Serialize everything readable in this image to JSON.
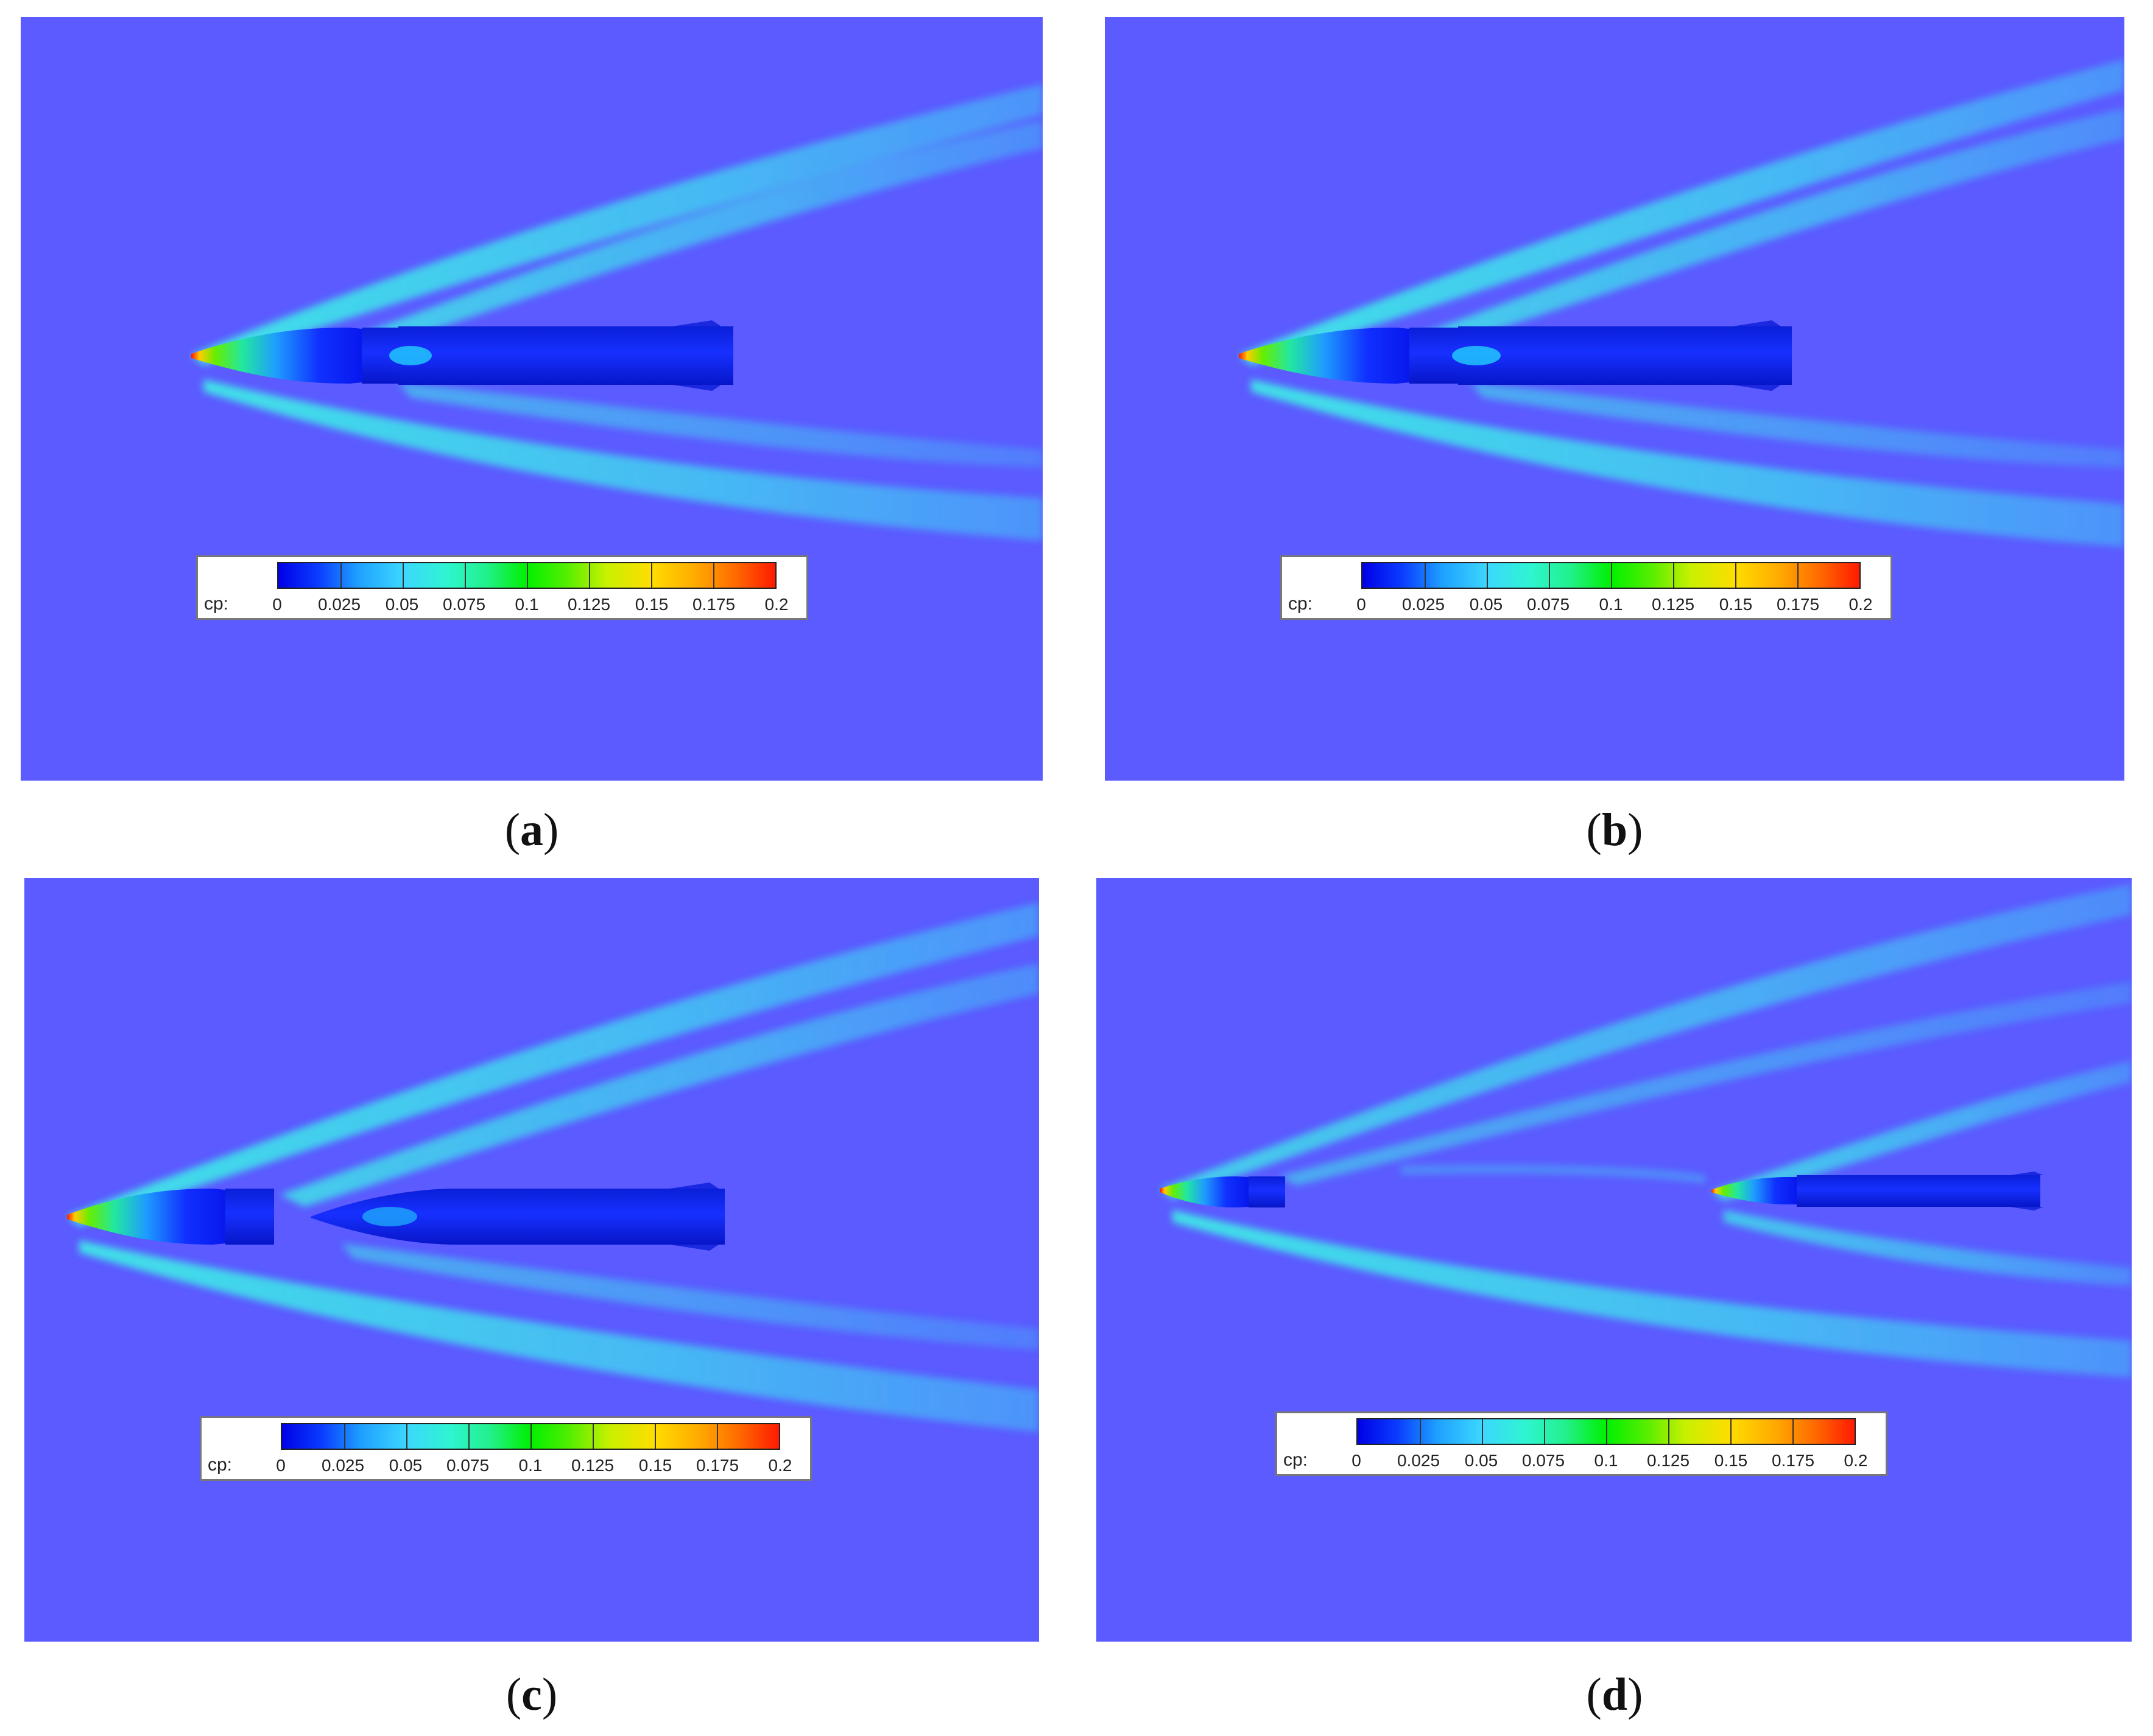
{
  "background_color": "#5b5bff",
  "colormap": [
    "#0000e6",
    "#1ea0ff",
    "#2ef5d0",
    "#00f000",
    "#c8f000",
    "#ffdd00",
    "#ff6a00",
    "#ff1a00"
  ],
  "legend": {
    "variable": "cp:",
    "ticks": [
      "0",
      "0.025",
      "0.05",
      "0.075",
      "0.1",
      "0.125",
      "0.15",
      "0.175",
      "0.2"
    ]
  },
  "panels": [
    {
      "id": "a",
      "caption": "a",
      "configuration": "joined"
    },
    {
      "id": "b",
      "caption": "b",
      "configuration": "joined"
    },
    {
      "id": "c",
      "caption": "c",
      "configuration": "separated"
    },
    {
      "id": "d",
      "caption": "d",
      "configuration": "separated-far"
    }
  ]
}
